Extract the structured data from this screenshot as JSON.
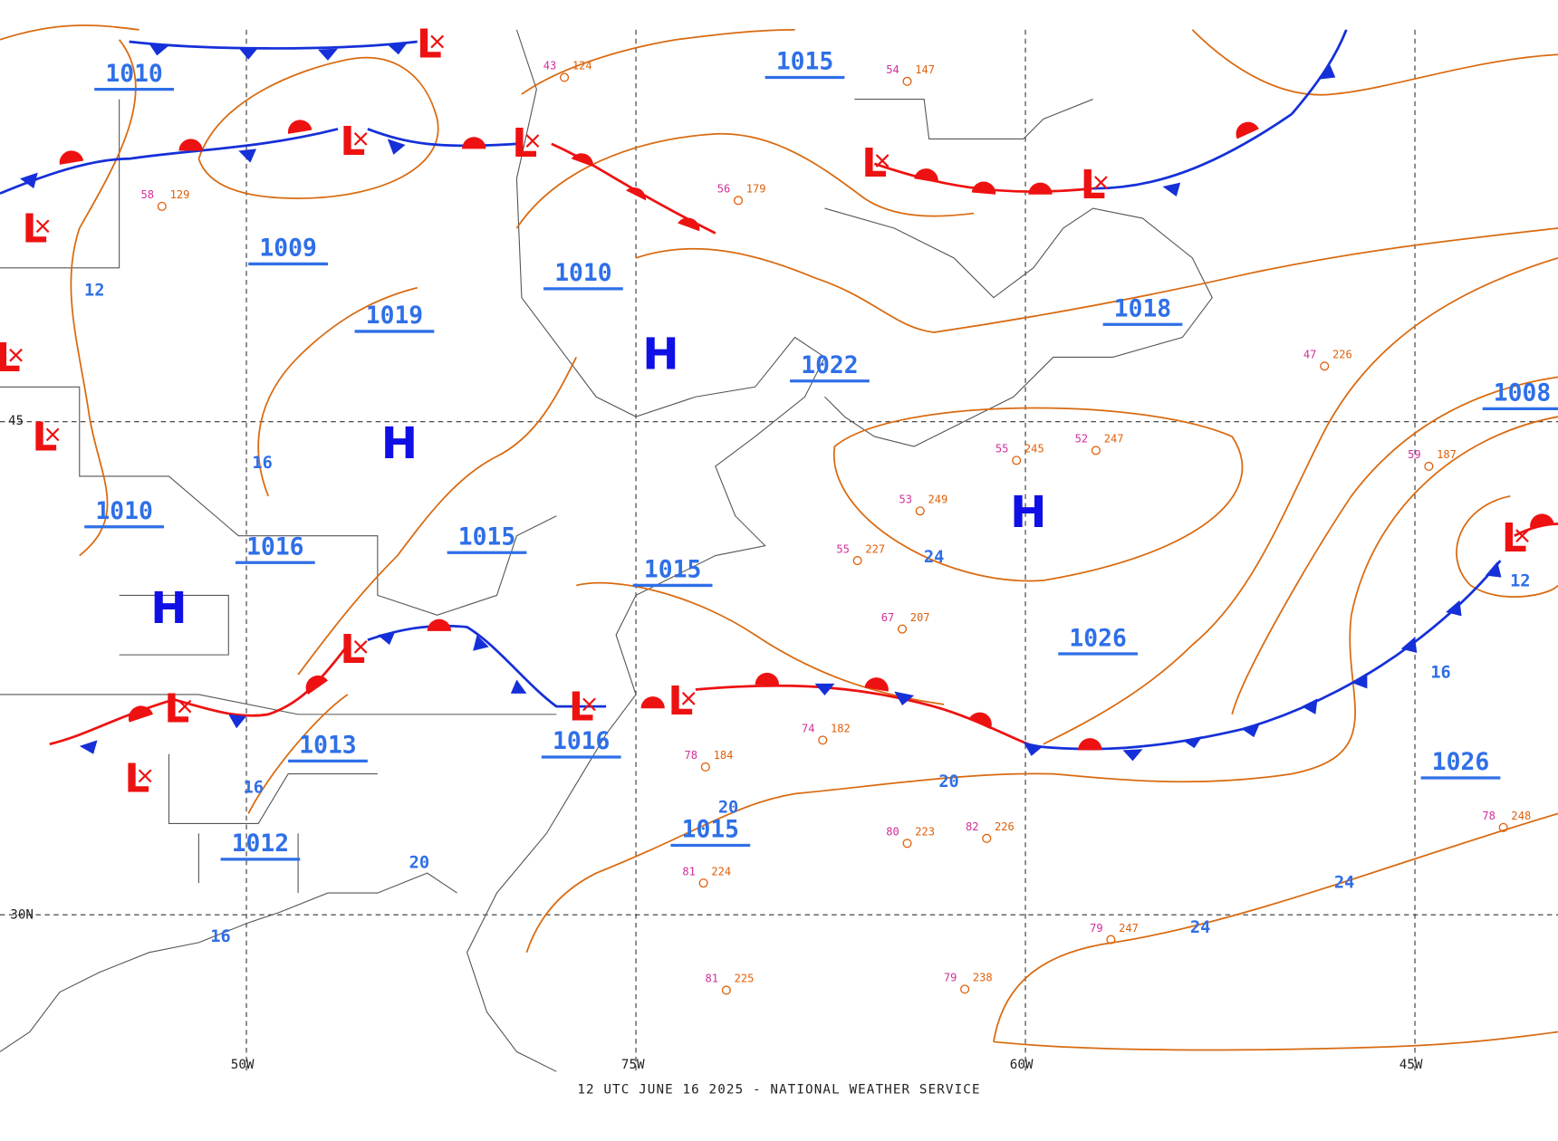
{
  "footer": "12 UTC JUNE 16 2025 - NATIONAL WEATHER SERVICE",
  "pressure_labels": [
    "1010",
    "1015",
    "1010",
    "1009",
    "1019",
    "1018",
    "1022",
    "1008",
    "1010",
    "1016",
    "1015",
    "1015",
    "1026",
    "1013",
    "1016",
    "1015",
    "1012",
    "1026"
  ],
  "isobar_labels": [
    "12",
    "16",
    "24",
    "20",
    "20",
    "24",
    "24",
    "16",
    "12",
    "16",
    "20",
    "16"
  ],
  "highs": [
    "H",
    "H",
    "H",
    "H"
  ],
  "lows": [
    "L",
    "L",
    "L",
    "L",
    "L",
    "L",
    "L",
    "L",
    "L",
    "L",
    "L",
    "L",
    "L",
    "L"
  ],
  "grid_labels": [
    "50W",
    "75W",
    "60W",
    "45W",
    "30N",
    "45"
  ],
  "stations": [
    {
      "temp": "43",
      "pressure": "124"
    },
    {
      "temp": "56",
      "pressure": "179"
    },
    {
      "temp": "52",
      "pressure": "247"
    },
    {
      "temp": "55",
      "pressure": "245"
    },
    {
      "temp": "53",
      "pressure": "249"
    },
    {
      "temp": "55",
      "pressure": "227"
    },
    {
      "temp": "67",
      "pressure": "207"
    },
    {
      "temp": "74",
      "pressure": "182"
    },
    {
      "temp": "78",
      "pressure": "184"
    },
    {
      "temp": "80",
      "pressure": "223"
    },
    {
      "temp": "82",
      "pressure": "226"
    },
    {
      "temp": "81",
      "pressure": "224"
    },
    {
      "temp": "79",
      "pressure": "247"
    },
    {
      "temp": "79",
      "pressure": "238"
    },
    {
      "temp": "81",
      "pressure": "225"
    },
    {
      "temp": "78",
      "pressure": "248"
    },
    {
      "temp": "47",
      "pressure": "226"
    },
    {
      "temp": "59",
      "pressure": "187"
    },
    {
      "temp": "54",
      "pressure": "147"
    },
    {
      "temp": "58",
      "pressure": "129"
    }
  ]
}
